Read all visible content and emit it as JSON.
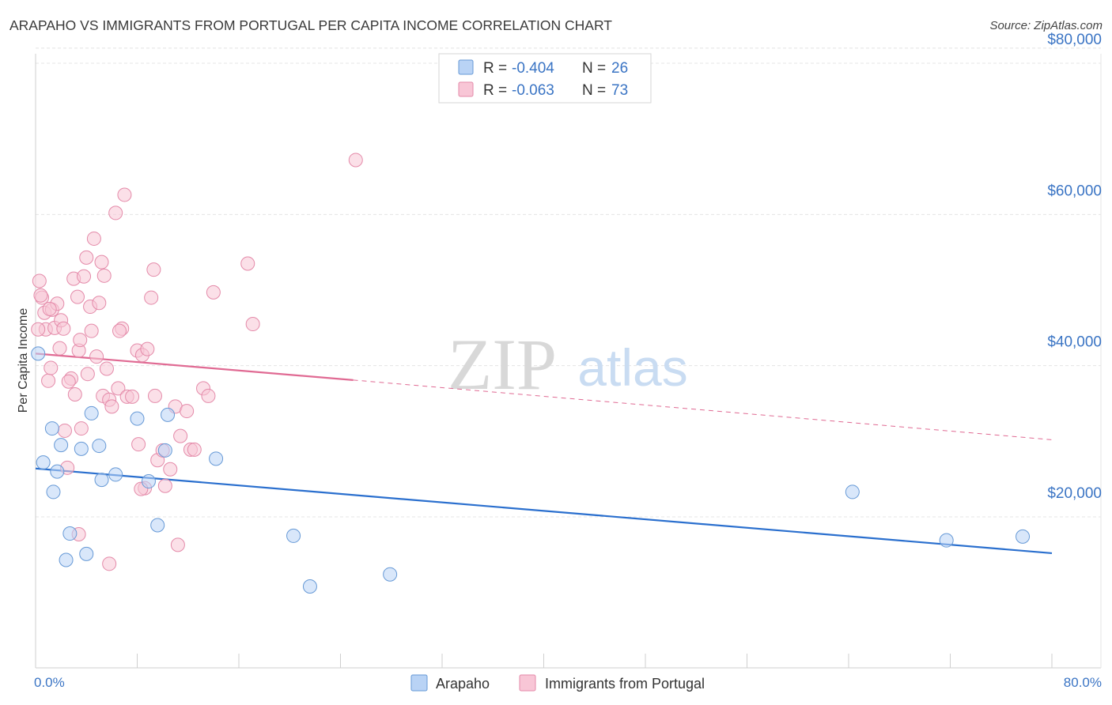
{
  "header": {
    "title": "ARAPAHO VS IMMIGRANTS FROM PORTUGAL PER CAPITA INCOME CORRELATION CHART",
    "source": "Source: ZipAtlas.com"
  },
  "watermark": {
    "zip": "ZIP",
    "atlas": "atlas"
  },
  "colors": {
    "arapaho_fill": "#b9d3f5",
    "arapaho_stroke": "#6699d6",
    "arapaho_line": "#2a6fce",
    "portugal_fill": "#f8c6d6",
    "portugal_stroke": "#e48aa9",
    "portugal_line": "#e06a93",
    "axis_text": "#3a74c4",
    "grid": "#e4e4e4"
  },
  "legend_top": [
    {
      "r_label": "R = ",
      "r_value": "-0.404",
      "n_label": "N = ",
      "n_value": "26"
    },
    {
      "r_label": "R = ",
      "r_value": "-0.063",
      "n_label": "N = ",
      "n_value": "73"
    }
  ],
  "chart_data": {
    "type": "scatter",
    "ylabel": "Per Capita Income",
    "xlabel": "",
    "xlim": [
      0,
      80
    ],
    "ylim": [
      0,
      82000
    ],
    "x_tick_labels": {
      "min": "0.0%",
      "max": "80.0%"
    },
    "y_ticks": [
      {
        "value": 20000,
        "label": "$20,000"
      },
      {
        "value": 40000,
        "label": "$40,000"
      },
      {
        "value": 60000,
        "label": "$60,000"
      },
      {
        "value": 80000,
        "label": "$80,000"
      }
    ],
    "grid": true,
    "series": [
      {
        "name": "Arapaho",
        "trend": {
          "x0": 0,
          "y0": 26400,
          "x1": 80,
          "y1": 15200
        },
        "points": [
          [
            0.2,
            41600
          ],
          [
            1.3,
            31700
          ],
          [
            0.6,
            27200
          ],
          [
            1.7,
            26000
          ],
          [
            2.0,
            29500
          ],
          [
            1.4,
            23300
          ],
          [
            3.6,
            29000
          ],
          [
            4.4,
            33700
          ],
          [
            5.0,
            29400
          ],
          [
            5.2,
            24900
          ],
          [
            6.3,
            25600
          ],
          [
            8.0,
            33000
          ],
          [
            8.9,
            24700
          ],
          [
            10.2,
            28800
          ],
          [
            10.4,
            33500
          ],
          [
            14.2,
            27700
          ],
          [
            9.6,
            18900
          ],
          [
            2.7,
            17800
          ],
          [
            2.4,
            14300
          ],
          [
            4.0,
            15100
          ],
          [
            20.3,
            17500
          ],
          [
            21.6,
            10800
          ],
          [
            27.9,
            12400
          ],
          [
            64.3,
            23300
          ],
          [
            71.7,
            16900
          ],
          [
            77.7,
            17400
          ]
        ]
      },
      {
        "name": "Immigrants from Portugal",
        "trend": {
          "x0": 0,
          "y0": 41600,
          "x1": 25,
          "y1": 38100,
          "dash_x1": 80,
          "dash_y1": 30200
        },
        "points": [
          [
            0.3,
            51200
          ],
          [
            0.5,
            49000
          ],
          [
            0.7,
            47000
          ],
          [
            0.8,
            44800
          ],
          [
            1.0,
            38000
          ],
          [
            1.2,
            39700
          ],
          [
            1.3,
            47400
          ],
          [
            1.5,
            45000
          ],
          [
            1.7,
            48200
          ],
          [
            1.9,
            42300
          ],
          [
            2.0,
            46000
          ],
          [
            2.3,
            31400
          ],
          [
            2.5,
            26500
          ],
          [
            2.8,
            38300
          ],
          [
            3.0,
            51500
          ],
          [
            3.1,
            36200
          ],
          [
            3.3,
            49100
          ],
          [
            3.4,
            42000
          ],
          [
            3.5,
            43400
          ],
          [
            3.6,
            31700
          ],
          [
            3.8,
            51800
          ],
          [
            4.0,
            54300
          ],
          [
            4.1,
            38900
          ],
          [
            4.3,
            47800
          ],
          [
            4.4,
            44600
          ],
          [
            4.6,
            56800
          ],
          [
            4.8,
            41200
          ],
          [
            5.0,
            48300
          ],
          [
            5.2,
            53700
          ],
          [
            5.3,
            36000
          ],
          [
            5.4,
            51900
          ],
          [
            5.6,
            39600
          ],
          [
            5.8,
            35500
          ],
          [
            6.0,
            34600
          ],
          [
            6.3,
            60200
          ],
          [
            6.5,
            37000
          ],
          [
            6.8,
            44900
          ],
          [
            7.0,
            62600
          ],
          [
            7.2,
            35900
          ],
          [
            7.6,
            35900
          ],
          [
            8.0,
            42000
          ],
          [
            8.1,
            29600
          ],
          [
            8.4,
            41400
          ],
          [
            8.6,
            23800
          ],
          [
            8.8,
            42200
          ],
          [
            9.1,
            49000
          ],
          [
            9.3,
            52700
          ],
          [
            9.4,
            36000
          ],
          [
            9.6,
            27500
          ],
          [
            10.0,
            28800
          ],
          [
            10.2,
            24100
          ],
          [
            10.6,
            26300
          ],
          [
            11.0,
            34600
          ],
          [
            11.2,
            16300
          ],
          [
            11.4,
            30700
          ],
          [
            11.9,
            34000
          ],
          [
            12.2,
            28900
          ],
          [
            12.5,
            28900
          ],
          [
            13.2,
            37000
          ],
          [
            13.6,
            36000
          ],
          [
            14.0,
            49700
          ],
          [
            16.7,
            53500
          ],
          [
            17.1,
            45500
          ],
          [
            25.2,
            67200
          ],
          [
            3.4,
            17700
          ],
          [
            5.8,
            13800
          ],
          [
            2.2,
            44900
          ],
          [
            6.6,
            44600
          ],
          [
            1.1,
            47500
          ],
          [
            0.4,
            49300
          ],
          [
            0.2,
            44800
          ],
          [
            2.6,
            37900
          ],
          [
            8.3,
            23700
          ]
        ]
      }
    ]
  },
  "legend_bottom": [
    "Arapaho",
    "Immigrants from Portugal"
  ]
}
